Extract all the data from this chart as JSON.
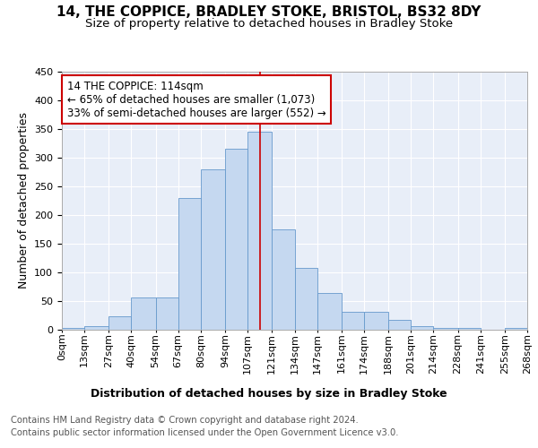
{
  "title": "14, THE COPPICE, BRADLEY STOKE, BRISTOL, BS32 8DY",
  "subtitle": "Size of property relative to detached houses in Bradley Stoke",
  "xlabel": "Distribution of detached houses by size in Bradley Stoke",
  "ylabel": "Number of detached properties",
  "footer_line1": "Contains HM Land Registry data © Crown copyright and database right 2024.",
  "footer_line2": "Contains public sector information licensed under the Open Government Licence v3.0.",
  "annotation_line1": "14 THE COPPICE: 114sqm",
  "annotation_line2": "← 65% of detached houses are smaller (1,073)",
  "annotation_line3": "33% of semi-detached houses are larger (552) →",
  "bar_edges": [
    0,
    13,
    27,
    40,
    54,
    67,
    80,
    94,
    107,
    121,
    134,
    147,
    161,
    174,
    188,
    201,
    214,
    228,
    241,
    255,
    268
  ],
  "bar_heights": [
    2,
    5,
    22,
    55,
    55,
    230,
    280,
    315,
    345,
    175,
    107,
    63,
    30,
    30,
    17,
    6,
    3,
    2,
    0,
    2
  ],
  "bar_color": "#c5d8f0",
  "bar_edge_color": "#6699cc",
  "vline_color": "#cc0000",
  "vline_x": 114,
  "annotation_box_color": "#cc0000",
  "background_color": "#e8eef8",
  "grid_color": "#ffffff",
  "ylim": [
    0,
    450
  ],
  "yticks": [
    0,
    50,
    100,
    150,
    200,
    250,
    300,
    350,
    400,
    450
  ],
  "title_fontsize": 11,
  "subtitle_fontsize": 9.5,
  "axis_label_fontsize": 9,
  "tick_fontsize": 8,
  "annotation_fontsize": 8.5,
  "footer_fontsize": 7.2
}
